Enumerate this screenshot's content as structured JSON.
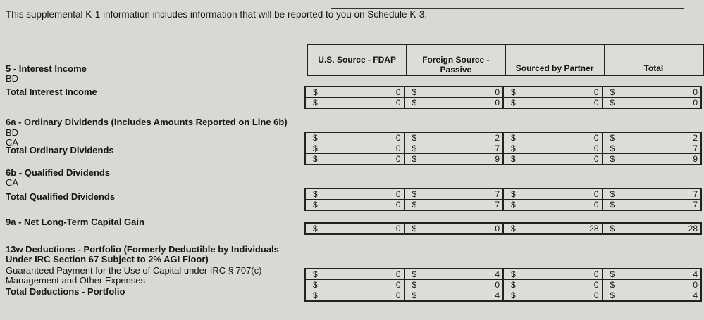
{
  "intro": "This supplemental K-1 information includes information that will be reported to you on Schedule K-3.",
  "columns": [
    "U.S. Source - FDAP",
    "Foreign Source - Passive",
    "Sourced by Partner",
    "Total"
  ],
  "currency": "$",
  "labels": [
    {
      "text": "5 - Interest Income",
      "bold": true
    },
    {
      "text": "BD",
      "bold": false
    },
    {
      "text": "Total Interest Income",
      "bold": true
    },
    {
      "text": "6a - Ordinary Dividends (Includes Amounts Reported on Line 6b)",
      "bold": true
    },
    {
      "text": "BD",
      "bold": false
    },
    {
      "text": "CA",
      "bold": false
    },
    {
      "text": "Total Ordinary Dividends",
      "bold": true
    },
    {
      "text": "6b - Qualified Dividends",
      "bold": true
    },
    {
      "text": "CA",
      "bold": false
    },
    {
      "text": "Total Qualified Dividends",
      "bold": true
    },
    {
      "text": "9a - Net Long-Term Capital Gain",
      "bold": true
    },
    {
      "text": "13w Deductions - Portfolio (Formerly Deductible by Individuals",
      "bold": true
    },
    {
      "text": "Under IRC Section 67 Subject to 2% AGI Floor)",
      "bold": true
    },
    {
      "text": "Guaranteed Payment for the Use of Capital under IRC § 707(c)",
      "bold": false
    },
    {
      "text": "Management and Other Expenses",
      "bold": false
    },
    {
      "text": "Total Deductions - Portfolio",
      "bold": true
    }
  ],
  "groups": [
    {
      "rows": [
        [
          "0",
          "0",
          "0",
          "0"
        ],
        [
          "0",
          "0",
          "0",
          "0"
        ]
      ]
    },
    {
      "rows": [
        [
          "0",
          "2",
          "0",
          "2"
        ],
        [
          "0",
          "7",
          "0",
          "7"
        ],
        [
          "0",
          "9",
          "0",
          "9"
        ]
      ]
    },
    {
      "rows": [
        [
          "0",
          "7",
          "0",
          "7"
        ],
        [
          "0",
          "7",
          "0",
          "7"
        ]
      ]
    },
    {
      "rows": [
        [
          "0",
          "0",
          "28",
          "28"
        ]
      ]
    },
    {
      "rows": [
        [
          "0",
          "4",
          "0",
          "4"
        ],
        [
          "0",
          "0",
          "0",
          "0"
        ],
        [
          "0",
          "4",
          "0",
          "4"
        ]
      ]
    }
  ]
}
